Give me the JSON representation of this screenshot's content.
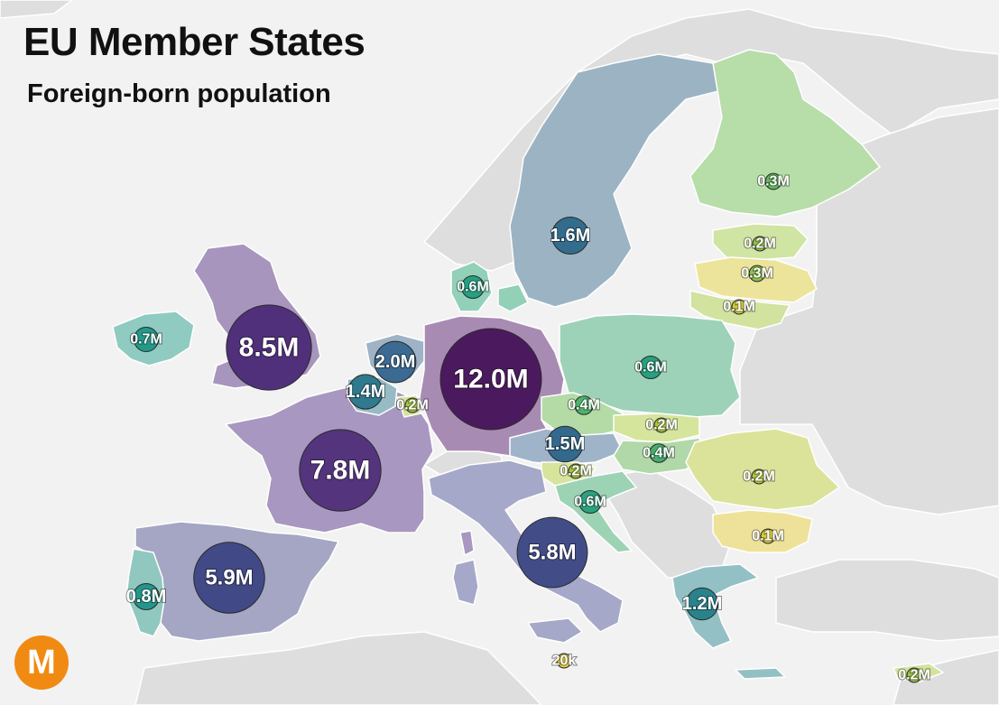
{
  "title": "EU Member States",
  "subtitle": "Foreign-born population",
  "logo_text": "M",
  "colors": {
    "sea": "#f2f2f2",
    "non_eu_land": "#dedede",
    "border": "#ffffff"
  },
  "countries": [
    {
      "id": "germany",
      "label": "12.0M",
      "value": 12.0,
      "color": "#4b1a5e",
      "fill": "#a88bb3"
    },
    {
      "id": "uk",
      "label": "8.5M",
      "value": 8.5,
      "color": "#50307a",
      "fill": "#a795bd"
    },
    {
      "id": "france",
      "label": "7.8M",
      "value": 7.8,
      "color": "#54347d",
      "fill": "#a897c0"
    },
    {
      "id": "spain",
      "label": "5.9M",
      "value": 5.9,
      "color": "#414a86",
      "fill": "#a4a6c4"
    },
    {
      "id": "italy",
      "label": "5.8M",
      "value": 5.8,
      "color": "#424d87",
      "fill": "#a5a8c8"
    },
    {
      "id": "netherlands",
      "label": "2.0M",
      "value": 2.0,
      "color": "#3b6a92",
      "fill": "#9fb3c6"
    },
    {
      "id": "sweden",
      "label": "1.6M",
      "value": 1.6,
      "color": "#336c8c",
      "fill": "#9cb3c3"
    },
    {
      "id": "austria",
      "label": "1.5M",
      "value": 1.5,
      "color": "#33698d",
      "fill": "#9fb4c8"
    },
    {
      "id": "belgium",
      "label": "1.4M",
      "value": 1.4,
      "color": "#2f7a8d",
      "fill": "#97bbc4"
    },
    {
      "id": "greece",
      "label": "1.2M",
      "value": 1.2,
      "color": "#2a838c",
      "fill": "#93c0c4"
    },
    {
      "id": "portugal",
      "label": "0.8M",
      "value": 0.8,
      "color": "#24958a",
      "fill": "#90c8bf"
    },
    {
      "id": "ireland",
      "label": "0.7M",
      "value": 0.7,
      "color": "#23998a",
      "fill": "#8fcbc0"
    },
    {
      "id": "denmark",
      "label": "0.6M",
      "value": 0.6,
      "color": "#25a084",
      "fill": "#92d0b8"
    },
    {
      "id": "poland",
      "label": "0.6M",
      "value": 0.6,
      "color": "#28a07f",
      "fill": "#9dd2b8"
    },
    {
      "id": "croatia",
      "label": "0.6M",
      "value": 0.6,
      "color": "#29a37d",
      "fill": "#9cd3b4"
    },
    {
      "id": "czechia",
      "label": "0.4M",
      "value": 0.4,
      "color": "#4eb46a",
      "fill": "#b4dba6"
    },
    {
      "id": "hungary",
      "label": "0.4M",
      "value": 0.4,
      "color": "#44ae6c",
      "fill": "#b0d8a8"
    },
    {
      "id": "finland",
      "label": "0.3M",
      "value": 0.3,
      "color": "#62b95e",
      "fill": "#b7dda9"
    },
    {
      "id": "lithuania",
      "label": "0.3M",
      "value": 0.3,
      "color": "#8cc04c",
      "fill": "#d2e29f"
    },
    {
      "id": "luxembourg",
      "label": "0.2M",
      "value": 0.2,
      "color": "#a4c63f",
      "fill": "#d4e39a"
    },
    {
      "id": "estonia",
      "label": "0.2M",
      "value": 0.2,
      "color": "#92c049",
      "fill": "#d0e4a3"
    },
    {
      "id": "slovakia",
      "label": "0.2M",
      "value": 0.2,
      "color": "#a8c740",
      "fill": "#d6e59c"
    },
    {
      "id": "slovenia",
      "label": "0.2M",
      "value": 0.2,
      "color": "#a6c33f",
      "fill": "#d7e49c"
    },
    {
      "id": "romania",
      "label": "0.2M",
      "value": 0.2,
      "color": "#b3c63a",
      "fill": "#dbe39a"
    },
    {
      "id": "cyprus",
      "label": "0.2M",
      "value": 0.2,
      "color": "#9bc244",
      "fill": "#d2e39e"
    },
    {
      "id": "latvia",
      "label": "0.1M",
      "value": 0.1,
      "color": "#cfcb36",
      "fill": "#ece49a"
    },
    {
      "id": "bulgaria",
      "label": "0.1M",
      "value": 0.1,
      "color": "#d8cc3a",
      "fill": "#eee29a"
    },
    {
      "id": "malta",
      "label": "20k",
      "value": 0.02,
      "color": "#e2d040",
      "fill": "#f2e59c"
    }
  ]
}
